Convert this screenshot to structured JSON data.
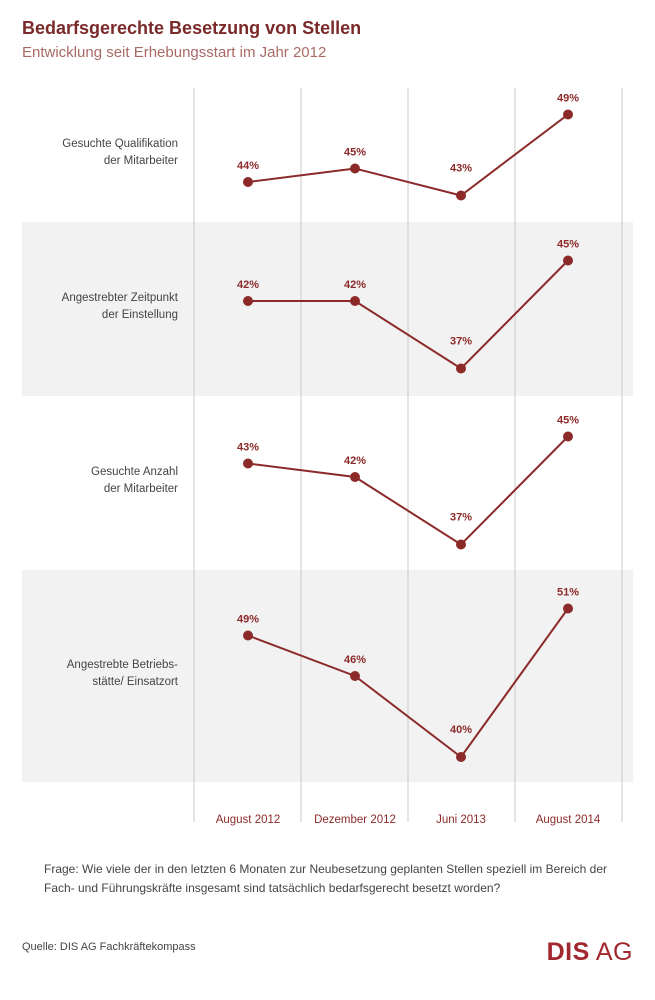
{
  "header": {
    "title": "Bedarfsgerechte Besetzung von Stellen",
    "subtitle": "Entwicklung seit Erhebungsstart im Jahr 2012"
  },
  "chart_data": {
    "type": "line",
    "title": "Bedarfsgerechte Besetzung von Stellen",
    "subtitle": "Entwicklung seit Erhebungsstart im Jahr 2012",
    "categories": [
      "August 2012",
      "Dezember 2012",
      "Juni 2013",
      "August 2014"
    ],
    "value_suffix": "%",
    "series": [
      {
        "name": "Gesuchte Qualifikation der Mitarbeiter",
        "label_lines": [
          "Gesuchte Qualifikation",
          "der Mitarbeiter"
        ],
        "values": [
          44,
          45,
          43,
          49
        ]
      },
      {
        "name": "Angestrebter Zeitpunkt der Einstellung",
        "label_lines": [
          "Angestrebter Zeitpunkt",
          "der Einstellung"
        ],
        "values": [
          42,
          42,
          37,
          45
        ]
      },
      {
        "name": "Gesuchte Anzahl der Mitarbeiter",
        "label_lines": [
          "Gesuchte Anzahl",
          "der Mitarbeiter"
        ],
        "values": [
          43,
          42,
          37,
          45
        ]
      },
      {
        "name": "Angestrebte Betriebsstätte/ Einsatzort",
        "label_lines": [
          "Angestrebte Betriebs-",
          "stätte/ Einsatzort"
        ],
        "values": [
          49,
          46,
          40,
          51
        ]
      }
    ],
    "line_color": "#8c2a2a",
    "point_color": "#8c2a2a",
    "label_color": "#8c2a2a",
    "band_color": "#f2f2f2"
  },
  "footer": {
    "question": "Frage: Wie viele der in den letzten 6 Monaten zur Neubesetzung geplanten Stellen speziell im Bereich der Fach- und Führungskräfte insgesamt sind tatsächlich bedarfsgerecht besetzt worden?",
    "source": "Quelle:  DIS AG Fachkräftekompass",
    "logo_bold": "DIS",
    "logo_light": "AG"
  }
}
